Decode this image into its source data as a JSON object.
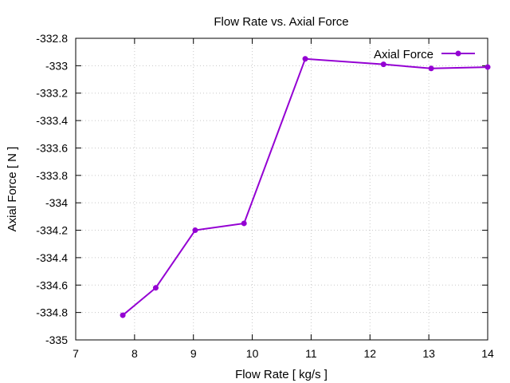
{
  "chart_data": {
    "type": "line",
    "title": "Flow Rate vs. Axial Force",
    "xlabel": "Flow Rate [ kg/s ]",
    "ylabel": "Axial Force [ N ]",
    "xlim": [
      7,
      14
    ],
    "ylim": [
      -335,
      -332.8
    ],
    "xticks": [
      7,
      8,
      9,
      10,
      11,
      12,
      13,
      14
    ],
    "yticks": [
      -335,
      -334.8,
      -334.6,
      -334.4,
      -334.2,
      -334,
      -333.8,
      -333.6,
      -333.4,
      -333.2,
      -333,
      -332.8
    ],
    "xtick_labels": [
      "7",
      "8",
      "9",
      "10",
      "11",
      "12",
      "13",
      "14"
    ],
    "ytick_labels": [
      "-335",
      "-334.8",
      "-334.6",
      "-334.4",
      "-334.2",
      "-334",
      "-333.8",
      "-333.6",
      "-333.4",
      "-333.2",
      "-333",
      "-332.8"
    ],
    "grid": true,
    "legend_position": "top-right",
    "series": [
      {
        "name": "Axial Force",
        "color": "#9400d3",
        "marker": "circle",
        "x": [
          7.8,
          8.36,
          9.03,
          9.86,
          10.9,
          12.23,
          13.04,
          14.0
        ],
        "y": [
          -334.82,
          -334.62,
          -334.2,
          -334.15,
          -332.95,
          -332.99,
          -333.02,
          -333.01
        ]
      }
    ]
  }
}
